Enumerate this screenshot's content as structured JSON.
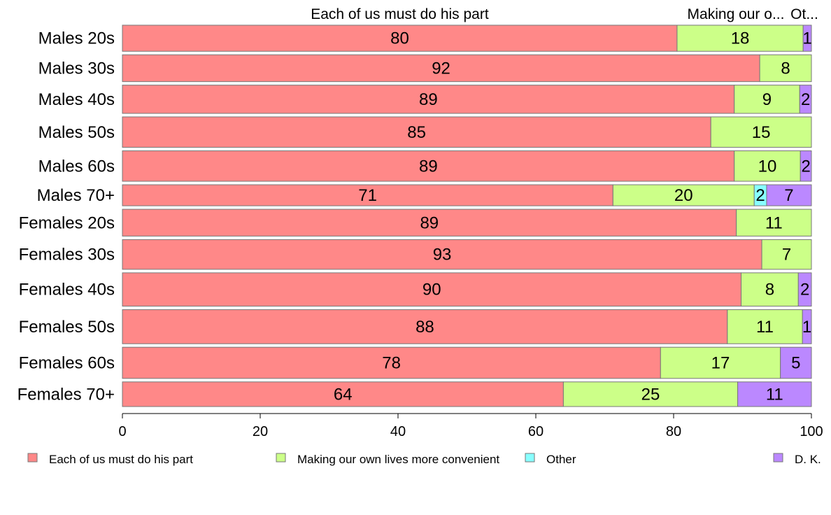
{
  "chart_data": {
    "type": "bar",
    "orientation": "horizontal",
    "stacked": true,
    "categories": [
      "Males 20s",
      "Males 30s",
      "Males 40s",
      "Males 50s",
      "Males 60s",
      "Males 70+",
      "Females 20s",
      "Females 30s",
      "Females 40s",
      "Females 50s",
      "Females 60s",
      "Females 70+"
    ],
    "category_weights": [
      36,
      37,
      39,
      42,
      42,
      29,
      37,
      41,
      46,
      47,
      43,
      34
    ],
    "series": [
      {
        "name": "Each of us must do his part",
        "color": "#ff8888",
        "values": [
          80.5,
          92.5,
          88.8,
          85.4,
          88.8,
          71.2,
          89.1,
          92.8,
          89.8,
          87.8,
          78.1,
          64.0
        ],
        "labels": [
          "80",
          "92",
          "89",
          "85",
          "89",
          "71",
          "89",
          "93",
          "90",
          "88",
          "78",
          "64"
        ]
      },
      {
        "name": "Making our own lives more convenient",
        "color": "#ccff88",
        "values": [
          18.3,
          7.5,
          9.5,
          14.6,
          9.6,
          20.5,
          10.9,
          7.2,
          8.3,
          10.9,
          17.4,
          25.3
        ],
        "labels": [
          "18",
          "8",
          "9",
          "15",
          "10",
          "20",
          "11",
          "7",
          "8",
          "11",
          "17",
          "25"
        ]
      },
      {
        "name": "Other",
        "color": "#88ffff",
        "values": [
          0,
          0,
          0,
          0,
          0,
          1.8,
          0,
          0,
          0,
          0,
          0,
          0
        ],
        "labels": [
          "",
          "",
          "",
          "",
          "",
          "2",
          "",
          "",
          "",
          "",
          "",
          ""
        ]
      },
      {
        "name": "D. K.",
        "color": "#bb88ff",
        "values": [
          1.2,
          0,
          1.7,
          0,
          1.6,
          6.5,
          0,
          0,
          1.9,
          1.3,
          4.5,
          10.7
        ],
        "labels": [
          "1",
          "",
          "2",
          "",
          "2",
          "7",
          "",
          "",
          "2",
          "1",
          "5",
          "11"
        ]
      }
    ],
    "top_labels": [
      "Each of us must do his part",
      "Making our o...",
      "Ot..."
    ],
    "xlim": [
      0,
      100
    ],
    "xticks": [
      "0",
      "20",
      "40",
      "60",
      "80",
      "100"
    ],
    "legend_position": "bottom",
    "grid": false
  }
}
